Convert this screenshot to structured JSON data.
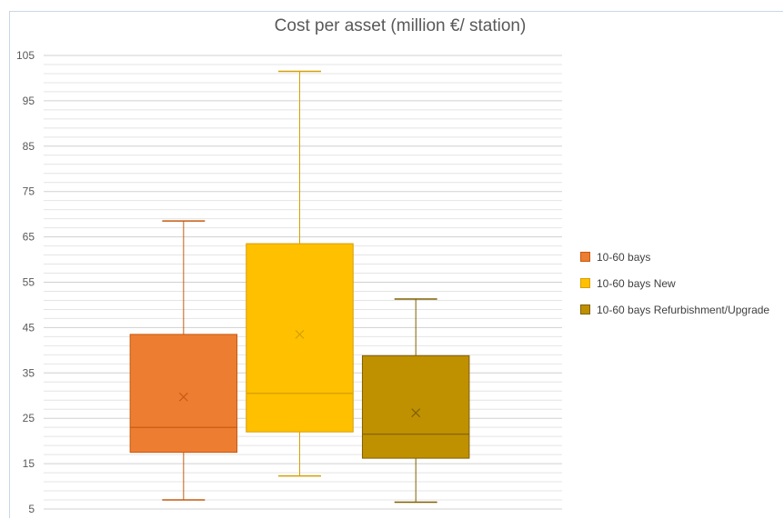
{
  "chart_data": {
    "type": "boxplot",
    "title": "Cost per asset (million €/ station)",
    "xlabel": "",
    "ylabel": "",
    "ylim": [
      5,
      105
    ],
    "yticks": [
      5,
      15,
      25,
      35,
      45,
      55,
      65,
      75,
      85,
      95,
      105
    ],
    "minor_grid_step": 2,
    "legend_position": "right",
    "series": [
      {
        "name": "10-60 bays",
        "color": "#ED7D31",
        "edge": "#C55A11",
        "min": 7,
        "q1": 17.5,
        "median": 23,
        "q3": 43.5,
        "max": 68.5,
        "mean": 29.7
      },
      {
        "name": "10-60 bays New",
        "color": "#FFC000",
        "edge": "#D69F00",
        "min": 12.3,
        "q1": 22,
        "median": 30.5,
        "q3": 63.5,
        "max": 101.5,
        "mean": 43.5
      },
      {
        "name": "10-60 bays Refurbishment/Upgrade",
        "color": "#BF9000",
        "edge": "#7F6000",
        "min": 6.5,
        "q1": 16.2,
        "median": 21.5,
        "q3": 38.8,
        "max": 51.3,
        "mean": 26.2
      }
    ]
  }
}
